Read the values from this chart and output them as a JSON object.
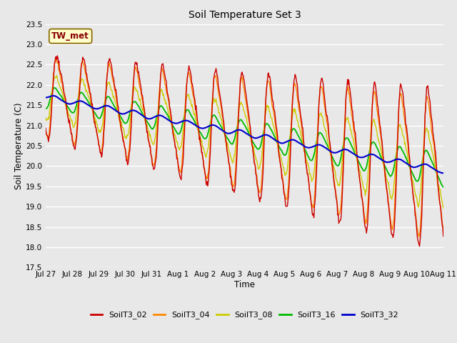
{
  "title": "Soil Temperature Set 3",
  "xlabel": "Time",
  "ylabel": "Soil Temperature (C)",
  "ylim": [
    17.5,
    23.5
  ],
  "series_colors": {
    "SoilT3_02": "#cc0000",
    "SoilT3_04": "#ff8800",
    "SoilT3_08": "#cccc00",
    "SoilT3_16": "#00bb00",
    "SoilT3_32": "#0000cc"
  },
  "series_order": [
    "SoilT3_02",
    "SoilT3_04",
    "SoilT3_08",
    "SoilT3_16",
    "SoilT3_32"
  ],
  "annotation_text": "TW_met",
  "annotation_color": "#880000",
  "annotation_box_color": "#ffffcc",
  "annotation_box_edge": "#886600",
  "bg_color": "#e8e8e8",
  "plot_bg_color": "#e8e8e8",
  "grid_color": "#ffffff",
  "tick_dates": [
    "Jul 27",
    "Jul 28",
    "Jul 29",
    "Jul 30",
    "Jul 31",
    "Aug 1",
    "Aug 2",
    "Aug 3",
    "Aug 4",
    "Aug 5",
    "Aug 6",
    "Aug 7",
    "Aug 8",
    "Aug 9",
    "Aug 10",
    "Aug 11"
  ],
  "n_points": 720,
  "days": 15
}
